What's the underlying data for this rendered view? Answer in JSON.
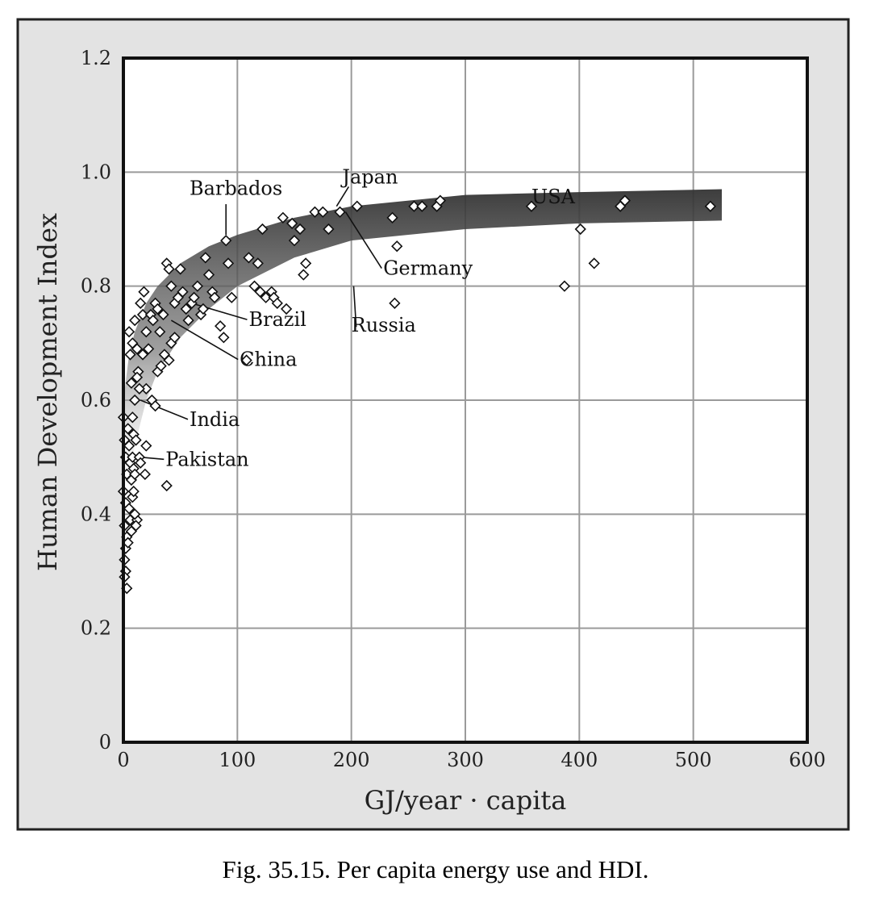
{
  "caption": "Fig. 35.15. Per capita energy use and HDI.",
  "chart_data": {
    "type": "scatter",
    "title": "",
    "xlabel": "GJ/year · capita",
    "ylabel": "Human Development Index",
    "xlim": [
      0,
      600
    ],
    "ylim": [
      0,
      1.2
    ],
    "xticks": [
      "0",
      "100",
      "200",
      "300",
      "400",
      "500",
      "600"
    ],
    "yticks": [
      "0",
      "0.2",
      "0.4",
      "0.6",
      "0.8",
      "1.0",
      "1.2"
    ],
    "grid": true,
    "marker": "diamond",
    "frame_color": "#e3e3e3",
    "trend_band_color": "#555555",
    "trend_band": {
      "upper": [
        [
          0,
          0.6
        ],
        [
          5,
          0.68
        ],
        [
          10,
          0.72
        ],
        [
          20,
          0.77
        ],
        [
          30,
          0.8
        ],
        [
          50,
          0.84
        ],
        [
          75,
          0.87
        ],
        [
          100,
          0.89
        ],
        [
          150,
          0.92
        ],
        [
          200,
          0.94
        ],
        [
          300,
          0.96
        ],
        [
          400,
          0.965
        ],
        [
          525,
          0.97
        ]
      ],
      "lower": [
        [
          0,
          0.4
        ],
        [
          5,
          0.46
        ],
        [
          10,
          0.52
        ],
        [
          20,
          0.6
        ],
        [
          30,
          0.65
        ],
        [
          50,
          0.71
        ],
        [
          75,
          0.76
        ],
        [
          100,
          0.8
        ],
        [
          150,
          0.85
        ],
        [
          200,
          0.88
        ],
        [
          300,
          0.9
        ],
        [
          400,
          0.91
        ],
        [
          525,
          0.915
        ]
      ]
    },
    "points": [
      [
        0,
        0.57
      ],
      [
        1,
        0.53
      ],
      [
        2,
        0.5
      ],
      [
        3,
        0.47
      ],
      [
        0,
        0.44
      ],
      [
        2,
        0.42
      ],
      [
        1,
        0.38
      ],
      [
        3,
        0.36
      ],
      [
        2,
        0.34
      ],
      [
        1,
        0.32
      ],
      [
        2,
        0.3
      ],
      [
        3,
        0.27
      ],
      [
        1,
        0.29
      ],
      [
        4,
        0.55
      ],
      [
        5,
        0.52
      ],
      [
        6,
        0.49
      ],
      [
        7,
        0.46
      ],
      [
        8,
        0.43
      ],
      [
        5,
        0.41
      ],
      [
        6,
        0.39
      ],
      [
        7,
        0.37
      ],
      [
        4,
        0.35
      ],
      [
        8,
        0.5
      ],
      [
        9,
        0.48
      ],
      [
        10,
        0.47
      ],
      [
        12,
        0.39
      ],
      [
        11,
        0.38
      ],
      [
        9,
        0.44
      ],
      [
        10,
        0.4
      ],
      [
        8,
        0.57
      ],
      [
        9,
        0.54
      ],
      [
        11,
        0.53
      ],
      [
        14,
        0.5
      ],
      [
        15,
        0.49
      ],
      [
        19,
        0.47
      ],
      [
        20,
        0.52
      ],
      [
        38,
        0.45
      ],
      [
        5,
        0.72
      ],
      [
        6,
        0.68
      ],
      [
        7,
        0.63
      ],
      [
        8,
        0.7
      ],
      [
        10,
        0.74
      ],
      [
        12,
        0.69
      ],
      [
        13,
        0.65
      ],
      [
        15,
        0.77
      ],
      [
        17,
        0.75
      ],
      [
        18,
        0.79
      ],
      [
        20,
        0.72
      ],
      [
        22,
        0.69
      ],
      [
        24,
        0.75
      ],
      [
        26,
        0.74
      ],
      [
        28,
        0.77
      ],
      [
        30,
        0.76
      ],
      [
        32,
        0.72
      ],
      [
        35,
        0.75
      ],
      [
        38,
        0.84
      ],
      [
        40,
        0.83
      ],
      [
        42,
        0.8
      ],
      [
        45,
        0.77
      ],
      [
        48,
        0.78
      ],
      [
        50,
        0.83
      ],
      [
        52,
        0.79
      ],
      [
        55,
        0.76
      ],
      [
        57,
        0.74
      ],
      [
        60,
        0.77
      ],
      [
        62,
        0.78
      ],
      [
        65,
        0.8
      ],
      [
        68,
        0.75
      ],
      [
        70,
        0.76
      ],
      [
        72,
        0.85
      ],
      [
        75,
        0.82
      ],
      [
        78,
        0.79
      ],
      [
        80,
        0.78
      ],
      [
        85,
        0.73
      ],
      [
        88,
        0.71
      ],
      [
        90,
        0.88
      ],
      [
        92,
        0.84
      ],
      [
        95,
        0.78
      ],
      [
        17,
        0.68
      ],
      [
        20,
        0.62
      ],
      [
        25,
        0.6
      ],
      [
        28,
        0.59
      ],
      [
        30,
        0.65
      ],
      [
        33,
        0.66
      ],
      [
        36,
        0.68
      ],
      [
        40,
        0.67
      ],
      [
        42,
        0.7
      ],
      [
        45,
        0.71
      ],
      [
        12,
        0.64
      ],
      [
        14,
        0.62
      ],
      [
        10,
        0.6
      ],
      [
        108,
        0.67
      ],
      [
        110,
        0.85
      ],
      [
        115,
        0.8
      ],
      [
        118,
        0.84
      ],
      [
        120,
        0.79
      ],
      [
        122,
        0.9
      ],
      [
        125,
        0.78
      ],
      [
        130,
        0.79
      ],
      [
        132,
        0.78
      ],
      [
        135,
        0.77
      ],
      [
        140,
        0.92
      ],
      [
        143,
        0.76
      ],
      [
        148,
        0.91
      ],
      [
        150,
        0.88
      ],
      [
        155,
        0.9
      ],
      [
        158,
        0.82
      ],
      [
        160,
        0.84
      ],
      [
        168,
        0.93
      ],
      [
        175,
        0.93
      ],
      [
        180,
        0.9
      ],
      [
        190,
        0.93
      ],
      [
        205,
        0.94
      ],
      [
        236,
        0.92
      ],
      [
        238,
        0.77
      ],
      [
        240,
        0.87
      ],
      [
        255,
        0.94
      ],
      [
        262,
        0.94
      ],
      [
        275,
        0.94
      ],
      [
        278,
        0.95
      ],
      [
        358,
        0.94
      ],
      [
        387,
        0.8
      ],
      [
        401,
        0.9
      ],
      [
        413,
        0.84
      ],
      [
        436,
        0.94
      ],
      [
        440,
        0.95
      ],
      [
        515,
        0.94
      ]
    ],
    "annotations": [
      {
        "label": "Barbados",
        "point": [
          90,
          0.89
        ],
        "text_pos": [
          58,
          0.96
        ]
      },
      {
        "label": "Japan",
        "point": [
          187,
          0.94
        ],
        "text_pos": [
          192,
          0.98
        ]
      },
      {
        "label": "USA",
        "point": [
          358,
          0.94
        ],
        "text_pos": [
          358,
          0.945
        ]
      },
      {
        "label": "Germany",
        "point": [
          195,
          0.93
        ],
        "text_pos": [
          228,
          0.82
        ]
      },
      {
        "label": "Russia",
        "point": [
          202,
          0.8
        ],
        "text_pos": [
          200,
          0.72
        ]
      },
      {
        "label": "Brazil",
        "point": [
          60,
          0.77
        ],
        "text_pos": [
          110,
          0.73
        ]
      },
      {
        "label": "China",
        "point": [
          42,
          0.74
        ],
        "text_pos": [
          102,
          0.66
        ]
      },
      {
        "label": "India",
        "point": [
          15,
          0.6
        ],
        "text_pos": [
          58,
          0.555
        ]
      },
      {
        "label": "Pakistan",
        "point": [
          15,
          0.5
        ],
        "text_pos": [
          37,
          0.485
        ]
      }
    ]
  }
}
